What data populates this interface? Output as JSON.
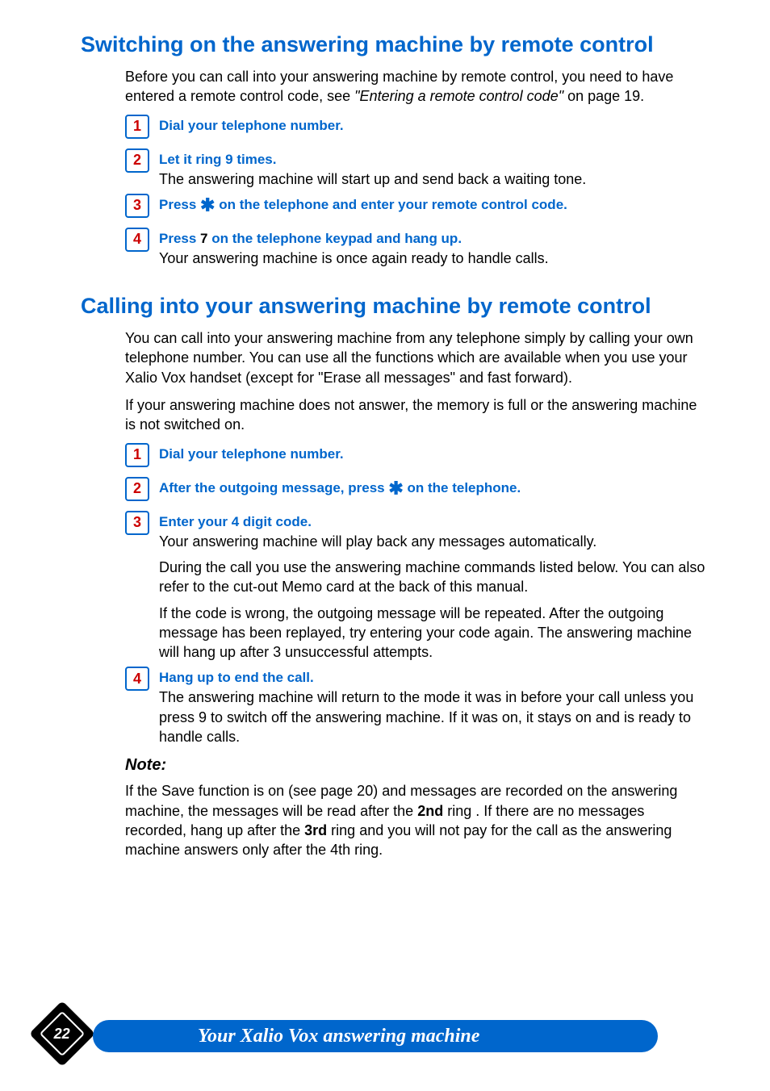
{
  "colors": {
    "heading_blue": "#0066cc",
    "step_red": "#cc0000",
    "text_black": "#000000",
    "footer_pill_bg": "#0066cc",
    "footer_badge_bg": "#000000",
    "page_bg": "#ffffff"
  },
  "section1": {
    "heading": "Switching on the answering machine by remote control",
    "intro_pre": "Before you can call into your answering machine by remote control, you need to have entered a remote control code, see ",
    "intro_italic": "\"Entering a remote control code\"",
    "intro_post": " on page 19.",
    "steps": [
      {
        "num": "1",
        "title": "Dial your telephone number.",
        "body": ""
      },
      {
        "num": "2",
        "title": "Let it ring 9 times.",
        "body": "The answering machine will start up and send back a waiting tone."
      },
      {
        "num": "3",
        "title_pre": "Press ",
        "title_star": "✱",
        "title_post": " on the telephone and enter your remote control code.",
        "body": ""
      },
      {
        "num": "4",
        "title_pre": "Press ",
        "title_black": "7",
        "title_post": " on the telephone keypad and hang up.",
        "body": "Your answering machine is once again ready to handle calls."
      }
    ]
  },
  "section2": {
    "heading": "Calling into your answering machine by remote control",
    "intro1": "You can call into your answering machine from any telephone simply by calling your own telephone number.   You can use all the functions which are available when you use your Xalio Vox handset (except for \"Erase all messages\" and fast forward).",
    "intro2": "If your answering machine does not answer, the memory is full or the answering machine is not switched on.",
    "steps": [
      {
        "num": "1",
        "title": "Dial your telephone number.",
        "bodies": []
      },
      {
        "num": "2",
        "title_pre": "After the outgoing message, press ",
        "title_star": "✱",
        "title_post": " on the telephone.",
        "bodies": []
      },
      {
        "num": "3",
        "title": "Enter your 4 digit code.",
        "bodies": [
          "Your answering machine will play back any messages automatically.",
          "During the call you use the answering machine commands listed below.  You can also refer to the cut-out Memo card at the back of this manual.",
          "If the code is wrong, the outgoing message will be repeated.  After the outgoing message has been replayed, try entering your code again.  The answering machine will hang up after 3 unsuccessful attempts."
        ]
      },
      {
        "num": "4",
        "title": "Hang up to end the call.",
        "bodies": [
          "The answering machine will return to the mode it was in before your call unless you press 9 to switch off the answering machine.  If it was on, it stays on and is ready to handle calls."
        ]
      }
    ]
  },
  "note": {
    "heading": "Note:",
    "body_pre": "If the Save function is on (see page 20) and messages are recorded on the answering machine, the messages will be read after the ",
    "body_b1": "2nd",
    "body_mid": " ring .  If there are no messages recorded, hang up after the ",
    "body_b2": "3rd",
    "body_post": " ring and you will not pay for the call as the answering machine answers only after the 4th ring."
  },
  "footer": {
    "page_number": "22",
    "chapter_title": "Your Xalio Vox answering machine"
  }
}
